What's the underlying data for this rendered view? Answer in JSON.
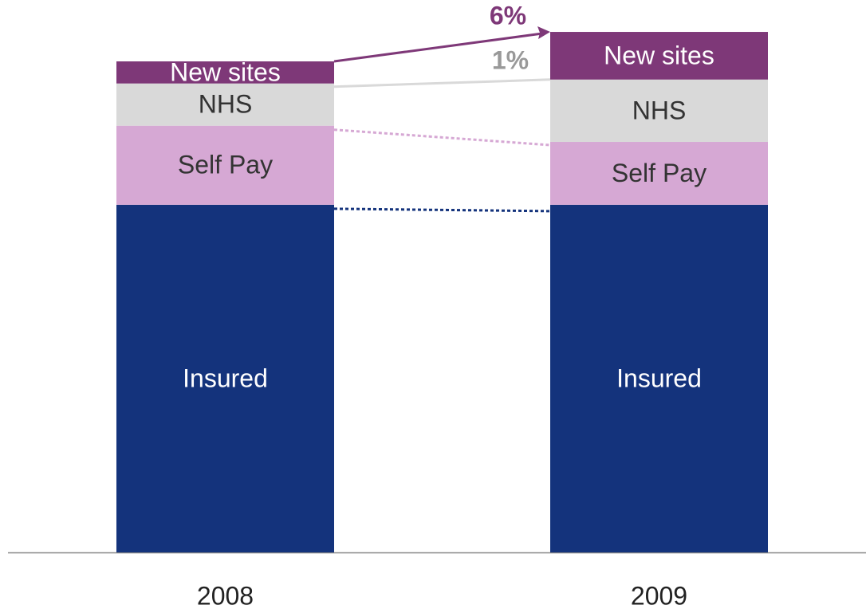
{
  "chart_data": {
    "type": "stacked_bar",
    "categories": [
      "2008",
      "2009"
    ],
    "series": [
      {
        "name": "Insured",
        "color": "#14337c",
        "values": [
          70.8,
          70.8
        ]
      },
      {
        "name": "Self Pay",
        "color": "#d6a8d4",
        "values": [
          16.1,
          12.8
        ]
      },
      {
        "name": "NHS",
        "color": "#d9d9d9",
        "values": [
          8.6,
          12.7
        ]
      },
      {
        "name": "New sites",
        "color": "#7e3878",
        "values": [
          4.5,
          9.7
        ]
      }
    ],
    "ylim": [
      0,
      112.5
    ],
    "annotations": [
      {
        "text": "6%",
        "color": "#7e3878"
      },
      {
        "text": "1%",
        "color": "#999999"
      }
    ]
  }
}
